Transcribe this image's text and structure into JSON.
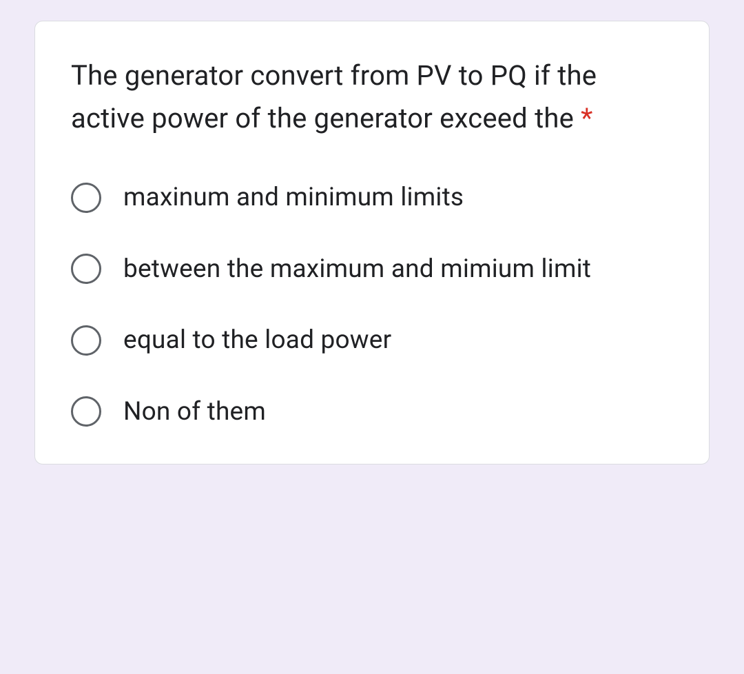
{
  "card": {
    "background_color": "#ffffff",
    "border_color": "#dadce0",
    "border_radius": 12
  },
  "page": {
    "background_color": "#f0ebf8"
  },
  "question": {
    "text": "The generator convert from PV to PQ if the active power of the generator exceed the ",
    "required_marker": "*",
    "required_color": "#d93025",
    "text_color": "#202124",
    "font_size": 40
  },
  "radio": {
    "border_color": "#5f6368",
    "size": 44
  },
  "options": [
    {
      "label": "maxinum and minimum limits",
      "selected": false
    },
    {
      "label": "between the maximum and mimium limit",
      "selected": false
    },
    {
      "label": "equal to the load power",
      "selected": false
    },
    {
      "label": "Non of them",
      "selected": false
    }
  ]
}
